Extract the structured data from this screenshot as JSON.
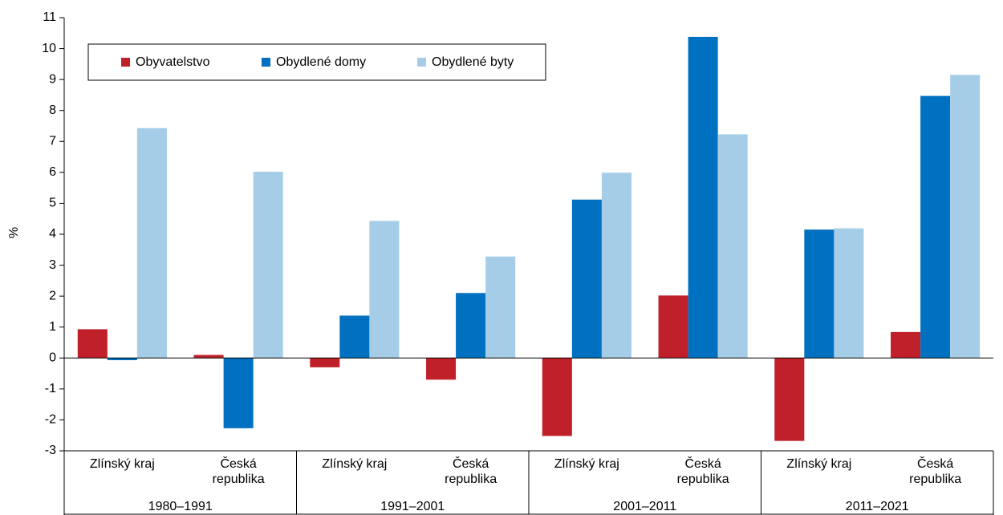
{
  "chart_data": {
    "type": "bar",
    "ylabel": "%",
    "categories": [
      "Zlínský kraj",
      "Česká republika",
      "Zlínský kraj",
      "Česká republika",
      "Zlínský kraj",
      "Česká republika",
      "Zlínský kraj",
      "Česká republika"
    ],
    "groups": [
      "1980–1991",
      "1991–2001",
      "2001–2011",
      "2011–2021"
    ],
    "series": [
      {
        "name": "Obyvatelstvo",
        "color": "#c0202a",
        "values": [
          0.93,
          0.1,
          -0.3,
          -0.7,
          -2.52,
          2.02,
          -2.68,
          0.84
        ]
      },
      {
        "name": "Obydlené domy",
        "color": "#0070c0",
        "values": [
          -0.07,
          -2.27,
          1.37,
          2.1,
          5.12,
          10.38,
          4.15,
          8.47
        ]
      },
      {
        "name": "Obydlené byty",
        "color": "#a6cde8",
        "values": [
          7.43,
          6.02,
          4.43,
          3.28,
          5.99,
          7.23,
          4.19,
          9.15
        ]
      }
    ],
    "ylim": [
      -3,
      11
    ],
    "yticks": [
      -3,
      -2,
      -1,
      0,
      1,
      2,
      3,
      4,
      5,
      6,
      7,
      8,
      9,
      10,
      11
    ],
    "legend": "top-left"
  }
}
